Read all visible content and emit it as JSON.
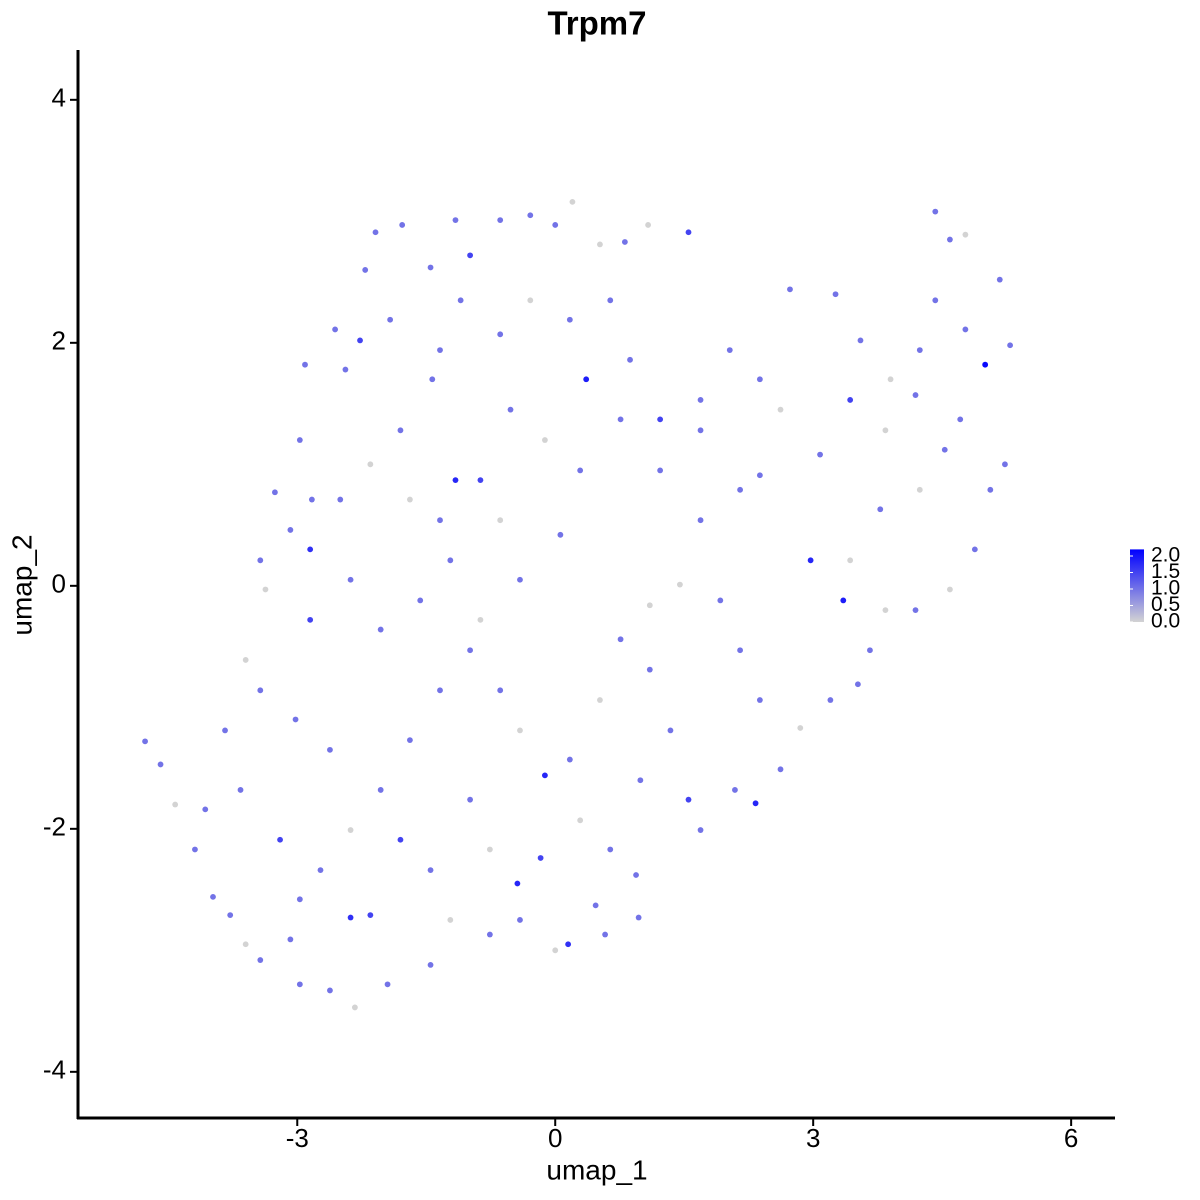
{
  "chart_data": {
    "type": "scatter",
    "title": "Trpm7",
    "x_label": "umap_1",
    "y_label": "umap_2",
    "xlim": [
      -5.55,
      6.51
    ],
    "ylim": [
      -4.38,
      4.41
    ],
    "xticks": [
      -3,
      0,
      3,
      6
    ],
    "yticks": [
      -4,
      -2,
      0,
      2,
      4
    ],
    "color_range": [
      "#d3d3d3",
      "#0000ff"
    ],
    "color_lim": [
      0,
      2.2
    ],
    "color_ticks": [
      {
        "value": 0,
        "label": "0.0"
      },
      {
        "value": 0.5,
        "label": "0.5"
      },
      {
        "value": 1,
        "label": "1.0"
      },
      {
        "value": 1.5,
        "label": "1.5"
      },
      {
        "value": 2,
        "label": "2.0"
      }
    ],
    "x": [
      -4.77,
      -4.59,
      -4.42,
      -4.19,
      -3.98,
      -3.78,
      -3.6,
      -3.43,
      -3.08,
      -2.97,
      -2.62,
      -2.33,
      -1.95,
      -2.15,
      -2.38,
      -3.2,
      -3.66,
      -3.84,
      -3.43,
      -3.6,
      -3.37,
      -3.43,
      -3.08,
      -2.85,
      -3.26,
      -2.97,
      -2.91,
      -2.56,
      -2.44,
      -2.21,
      -2.09,
      -1.78,
      -1.45,
      -1.16,
      -0.99,
      -0.64,
      -0.29,
      0,
      0.2,
      0.52,
      0.81,
      1.08,
      1.55,
      0.36,
      -0.64,
      -1.43,
      -1.8,
      -2.15,
      -2.5,
      -2.83,
      -2.38,
      -2.03,
      -1.57,
      -1.22,
      -0.87,
      -0.52,
      -0.12,
      0.29,
      0.76,
      1.22,
      1.69,
      2.03,
      2.38,
      2.73,
      3.26,
      3.55,
      3.43,
      3.08,
      2.97,
      3.35,
      3.43,
      3.78,
      3.84,
      4.24,
      4.42,
      4.42,
      4.59,
      4.77,
      5.0,
      5.17,
      5.29,
      5.23,
      5.06,
      4.88,
      4.59,
      4.19,
      3.84,
      3.66,
      3.52,
      3.2,
      2.85,
      2.62,
      2.33,
      2.09,
      1.69,
      1.55,
      1.34,
      1.1,
      0.76,
      0.52,
      0.17,
      -0.12,
      -0.41,
      -0.64,
      -0.99,
      -1.34,
      -1.69,
      -2.03,
      -2.38,
      -2.73,
      -2.97,
      -1.8,
      -1.45,
      -1.22,
      -1.45,
      -0.76,
      -0.41,
      0,
      0.15,
      0.47,
      0.58,
      0.97,
      0.94,
      0.64,
      0.29,
      -0.17,
      -0.44,
      -0.76,
      -0.99,
      0.99,
      2.15,
      2.38,
      1.92,
      1.45,
      1.1,
      1.69,
      2.15,
      2.38,
      2.62,
      0.06,
      -0.41,
      -0.87,
      -0.64,
      -1.34,
      -1.69,
      -1.16,
      -1.34,
      -1.92,
      -2.27,
      -1.1,
      -0.29,
      0.17,
      0.64,
      0.87,
      1.22,
      1.69,
      3.9,
      4.19,
      4.71,
      4.77,
      4.53,
      4.24,
      -2.85,
      -3.02,
      -2.62,
      -4.07
    ],
    "y": [
      -1.28,
      -1.47,
      -1.8,
      -2.17,
      -2.56,
      -2.71,
      -2.95,
      -3.08,
      -2.91,
      -3.28,
      -3.33,
      -3.47,
      -3.28,
      -2.71,
      -2.73,
      -2.09,
      -1.68,
      -1.19,
      -0.86,
      -0.61,
      -0.03,
      0.21,
      0.46,
      0.3,
      0.77,
      1.2,
      1.82,
      2.11,
      1.78,
      2.6,
      2.91,
      2.97,
      2.62,
      3.01,
      2.72,
      3.01,
      3.05,
      2.97,
      3.16,
      2.81,
      2.83,
      2.97,
      2.91,
      1.7,
      2.07,
      1.7,
      1.28,
      1.0,
      0.71,
      0.71,
      0.05,
      -0.36,
      -0.12,
      0.21,
      0.87,
      1.45,
      1.2,
      0.95,
      1.37,
      0.95,
      1.28,
      1.94,
      1.7,
      2.44,
      2.4,
      2.02,
      1.53,
      1.08,
      0.21,
      -0.12,
      0.21,
      0.63,
      1.28,
      1.94,
      2.35,
      3.08,
      2.85,
      2.89,
      1.82,
      2.52,
      1.98,
      1.0,
      0.79,
      0.3,
      -0.03,
      -0.2,
      -0.2,
      -0.53,
      -0.81,
      -0.94,
      -1.17,
      -1.51,
      -1.79,
      -1.68,
      -2.01,
      -1.76,
      -1.19,
      -0.69,
      -0.44,
      -0.94,
      -1.43,
      -1.56,
      -1.19,
      -0.86,
      -0.53,
      -0.86,
      -1.27,
      -1.68,
      -2.01,
      -2.34,
      -2.58,
      -2.09,
      -2.34,
      -2.75,
      -3.12,
      -2.87,
      -2.75,
      -3.0,
      -2.95,
      -2.63,
      -2.87,
      -2.73,
      -2.38,
      -2.17,
      -1.93,
      -2.24,
      -2.45,
      -2.17,
      -1.76,
      -1.6,
      -0.53,
      -0.94,
      -0.12,
      0.01,
      -0.16,
      0.54,
      0.79,
      0.91,
      1.45,
      0.42,
      0.05,
      -0.28,
      0.54,
      0.54,
      0.71,
      0.87,
      1.94,
      2.19,
      2.02,
      2.35,
      2.35,
      2.19,
      2.35,
      1.86,
      1.37,
      1.53,
      1.7,
      1.57,
      1.37,
      2.11,
      1.12,
      0.79,
      -0.28,
      -1.1,
      -1.35,
      -1.84
    ],
    "values": [
      1,
      1,
      0,
      1,
      1,
      1,
      0,
      1,
      1,
      1,
      1,
      0,
      1,
      1.5,
      1.7,
      1.5,
      1,
      1,
      1,
      0,
      0,
      1,
      1,
      1.7,
      1,
      1,
      1,
      1,
      1,
      1,
      1,
      1,
      1,
      1,
      1.5,
      1,
      1,
      1,
      0,
      0,
      1,
      0,
      1.5,
      1.9,
      1,
      1,
      1,
      0,
      1,
      1,
      1,
      1,
      1,
      1,
      1.5,
      1,
      0,
      1,
      1,
      1,
      1,
      1,
      1,
      1,
      1,
      1,
      1.5,
      1,
      1.8,
      1.9,
      0,
      1,
      0,
      1,
      1,
      1,
      1,
      0,
      2.1,
      1,
      1,
      1,
      1,
      1,
      0,
      1,
      0,
      1,
      1,
      1,
      0,
      1,
      1.8,
      1,
      1,
      1.5,
      1,
      1,
      1,
      0,
      1,
      1.8,
      0,
      1,
      1,
      1,
      1,
      1,
      0,
      1,
      1,
      1.5,
      1,
      0,
      1,
      1,
      1,
      0,
      1.7,
      1,
      1,
      1,
      1,
      1,
      0,
      1.5,
      1.8,
      0,
      1,
      1,
      1,
      1,
      1,
      0,
      0,
      1,
      1,
      1,
      0,
      1,
      1,
      0,
      0,
      1,
      0,
      1.8,
      1,
      1,
      1.5,
      1,
      0,
      1,
      1,
      1,
      1.5,
      1,
      0,
      1,
      1,
      1,
      1,
      0,
      1.5,
      1,
      1,
      1
    ]
  }
}
